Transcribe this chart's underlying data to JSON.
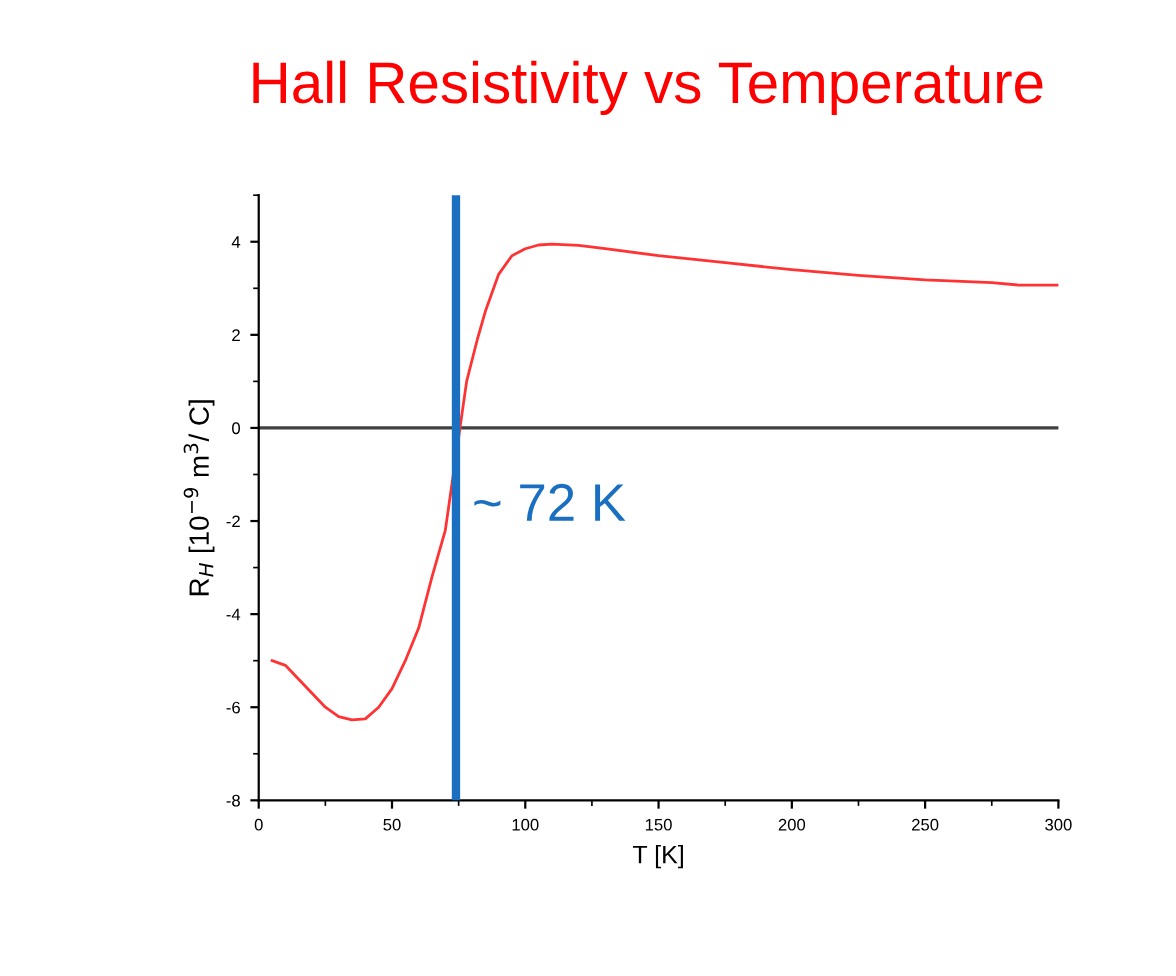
{
  "chart_data": {
    "type": "line",
    "title": "Hall Resistivity vs Temperature",
    "xlabel": "T [K]",
    "ylabel": "R$_{H}$ [10$^{−9}$ m$^{3}$/ C]",
    "xlim": [
      0,
      300
    ],
    "xticks": [
      0,
      50,
      100,
      150,
      200,
      250,
      300
    ],
    "ylim": [
      -8,
      5
    ],
    "yticks": [
      -8,
      -6,
      -4,
      -2,
      0,
      2,
      4
    ],
    "grid": false,
    "legend": false,
    "marker": "none",
    "line_style": "solid",
    "series": [
      {
        "color": "#ff3333",
        "x": [
          5,
          10,
          15,
          20,
          25,
          30,
          35,
          40,
          45,
          50,
          55,
          60,
          65,
          70,
          73,
          75,
          78,
          82,
          85,
          90,
          95,
          100,
          105,
          110,
          120,
          130,
          150,
          175,
          200,
          225,
          250,
          275,
          285,
          300
        ],
        "values": [
          -5.0,
          -5.1,
          -5.4,
          -5.7,
          -6.0,
          -6.2,
          -6.27,
          -6.25,
          -6.0,
          -5.6,
          -5.0,
          -4.3,
          -3.2,
          -2.2,
          -1.0,
          -0.2,
          1.0,
          1.9,
          2.5,
          3.3,
          3.7,
          3.85,
          3.93,
          3.95,
          3.92,
          3.85,
          3.7,
          3.55,
          3.4,
          3.28,
          3.18,
          3.12,
          3.07,
          3.07
        ]
      }
    ],
    "ref_lines": [
      {
        "axis": "y",
        "value": 0,
        "color": "#404040"
      },
      {
        "axis": "x",
        "value": 74,
        "label": "~ 72 K",
        "color": "#1a6fc0"
      }
    ]
  }
}
